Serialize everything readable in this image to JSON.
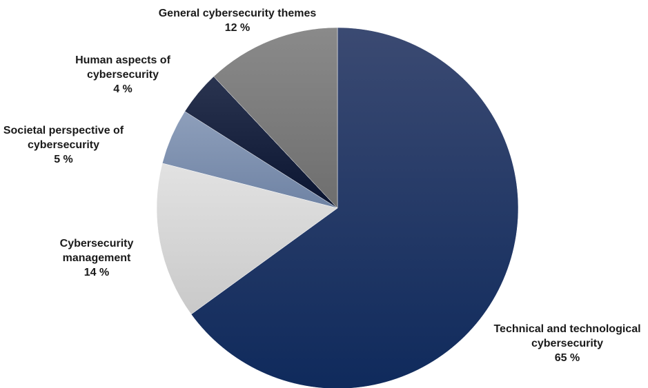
{
  "chart_data": {
    "type": "pie",
    "title": "",
    "start_angle_deg": 0,
    "direction": "clockwise",
    "slices": [
      {
        "label_lines": [
          "Technical and technological",
          "cybersecurity"
        ],
        "value": 65,
        "value_label": "65 %",
        "color_top": "#3b4a72",
        "color_bottom": "#0f2a5c"
      },
      {
        "label_lines": [
          "Cybersecurity",
          "management"
        ],
        "value": 14,
        "value_label": "14 %",
        "color_top": "#e2e2e2",
        "color_bottom": "#c9c9c9"
      },
      {
        "label_lines": [
          "Societal perspective of",
          "cybersecurity"
        ],
        "value": 5,
        "value_label": "5 %",
        "color_top": "#8e9fbb",
        "color_bottom": "#6f83a4"
      },
      {
        "label_lines": [
          "Human aspects of",
          "cybersecurity"
        ],
        "value": 4,
        "value_label": "4 %",
        "color_top": "#2a3450",
        "color_bottom": "#0a1430"
      },
      {
        "label_lines": [
          "General cybersecurity themes"
        ],
        "value": 12,
        "value_label": "12 %",
        "color_top": "#8a8a8a",
        "color_bottom": "#6e6e6e"
      }
    ]
  }
}
